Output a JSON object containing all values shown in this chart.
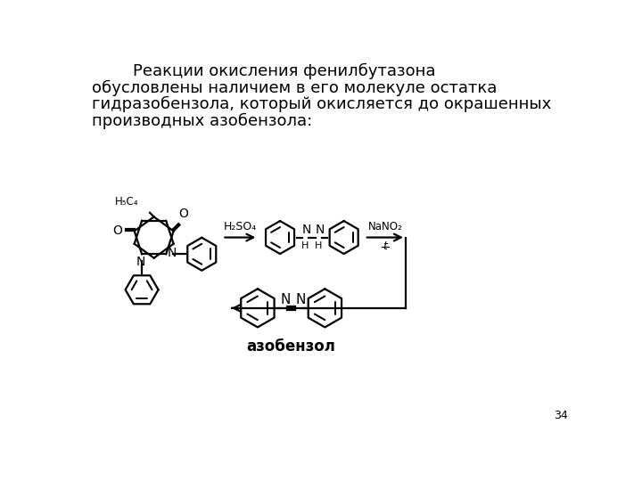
{
  "title_lines": [
    [
      "        Реакции окисления фенилбутазона",
      0
    ],
    [
      "обусловлены наличием в его молекуле остатка",
      1
    ],
    [
      "гидразобензола, который окисляется до окрашенных",
      2
    ],
    [
      "производных азобензола:",
      3
    ]
  ],
  "label_azobenzol": "азобензол",
  "label_h2so4": "H₂SO₄",
  "label_nano2": "NaNO₂",
  "label_t": "t",
  "page_number": "34",
  "bg_color": "#ffffff",
  "text_color": "#000000",
  "font_size_title": 13.0,
  "font_size_page": 9
}
